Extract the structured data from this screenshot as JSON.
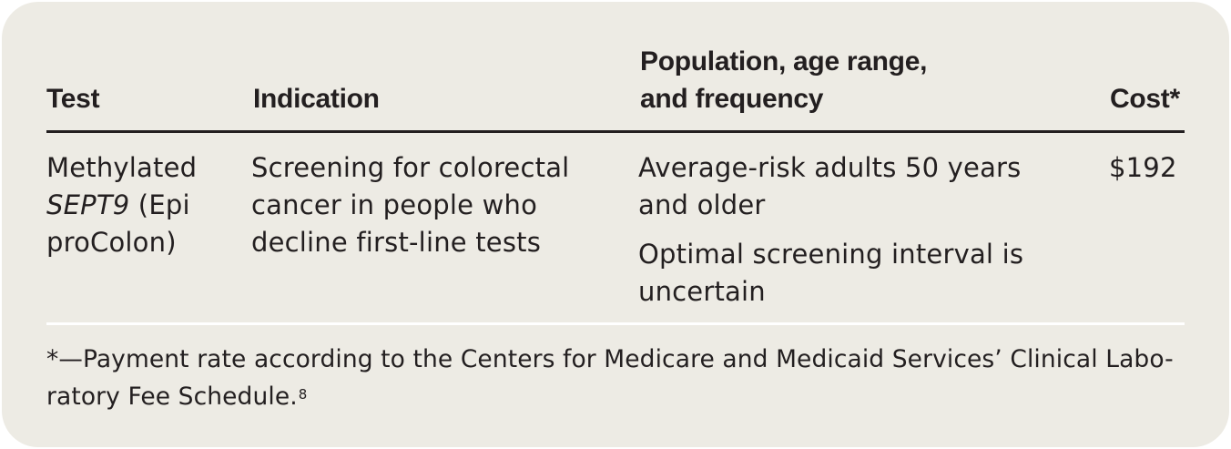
{
  "table": {
    "headers": {
      "test": "Test",
      "indication": "Indication",
      "population_line1": "Population, age range,",
      "population_line2": "and frequency",
      "cost": "Cost*"
    },
    "row": {
      "test_line1": "Methylated",
      "test_gene": "SEPT9",
      "test_line2_rest": " (Epi",
      "test_line3": "proColon)",
      "indication_line1": "Screening for colorectal",
      "indication_line2": "cancer in people who",
      "indication_line3": "decline first-line tests",
      "population_p1_line1": "Average-risk adults 50 years",
      "population_p1_line2": "and older",
      "population_p2_line1": "Optimal screening interval is",
      "population_p2_line2": "uncertain",
      "cost": "$192"
    }
  },
  "footnote": {
    "line1": "*—Payment rate according to the Centers for Medicare and Medicaid Services’ Clinical Labo-",
    "line2": "ratory Fee Schedule.",
    "reference": "8"
  }
}
